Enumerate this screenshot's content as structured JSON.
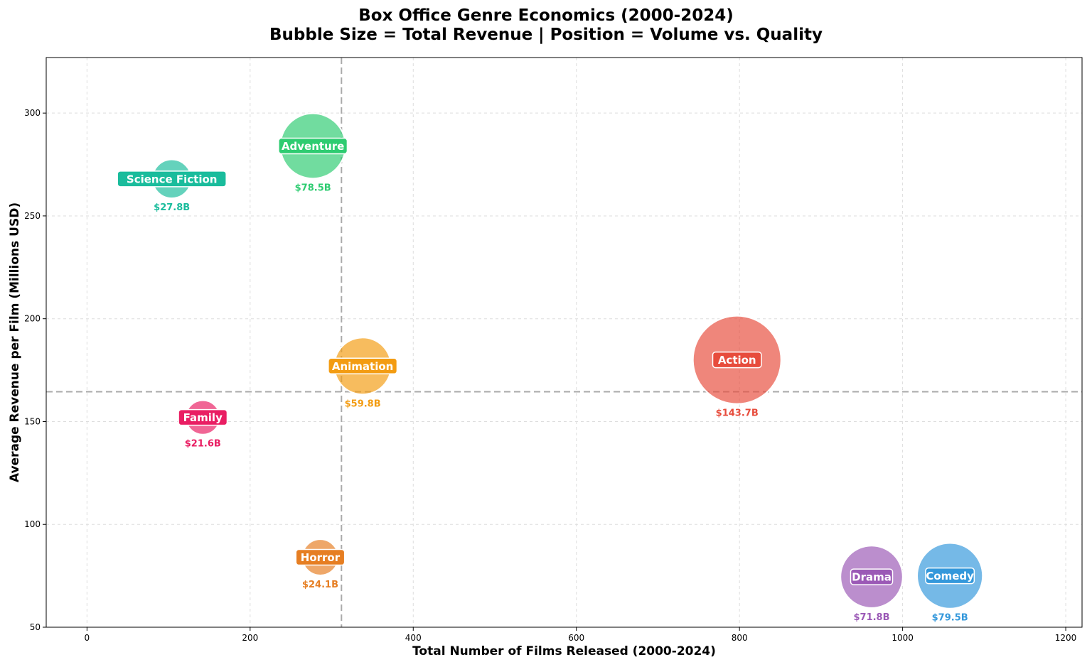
{
  "chart_data": {
    "type": "scatter",
    "title": "Box Office Genre Economics (2000-2024)",
    "subtitle": "Bubble Size = Total Revenue | Position = Volume vs. Quality",
    "xlabel": "Total Number of Films Released (2000-2024)",
    "ylabel": "Average Revenue per Film (Millions USD)",
    "xlim": [
      -50,
      1220
    ],
    "ylim": [
      50,
      327
    ],
    "xticks": [
      0,
      200,
      400,
      600,
      800,
      1000,
      1200
    ],
    "yticks": [
      50,
      100,
      150,
      200,
      250,
      300
    ],
    "grid": true,
    "reference_lines": {
      "x": 312,
      "y": 164.5
    },
    "points": [
      {
        "genre": "Science Fiction",
        "films": 104,
        "avg_revenue": 268,
        "total_revenue": 27.8,
        "revenue_label": "$27.8B",
        "color": "#1abc9c"
      },
      {
        "genre": "Adventure",
        "films": 277,
        "avg_revenue": 284,
        "total_revenue": 78.5,
        "revenue_label": "$78.5B",
        "color": "#2ecc71"
      },
      {
        "genre": "Animation",
        "films": 338,
        "avg_revenue": 177,
        "total_revenue": 59.8,
        "revenue_label": "$59.8B",
        "color": "#f39c12"
      },
      {
        "genre": "Family",
        "films": 142,
        "avg_revenue": 152,
        "total_revenue": 21.6,
        "revenue_label": "$21.6B",
        "color": "#e91e63"
      },
      {
        "genre": "Horror",
        "films": 286,
        "avg_revenue": 84,
        "total_revenue": 24.1,
        "revenue_label": "$24.1B",
        "color": "#e67e22"
      },
      {
        "genre": "Action",
        "films": 797,
        "avg_revenue": 180,
        "total_revenue": 143.7,
        "revenue_label": "$143.7B",
        "color": "#e74c3c"
      },
      {
        "genre": "Drama",
        "films": 962,
        "avg_revenue": 74.5,
        "total_revenue": 71.8,
        "revenue_label": "$71.8B",
        "color": "#9b59b6"
      },
      {
        "genre": "Comedy",
        "films": 1058,
        "avg_revenue": 75,
        "total_revenue": 79.5,
        "revenue_label": "$79.5B",
        "color": "#3498db"
      }
    ]
  }
}
